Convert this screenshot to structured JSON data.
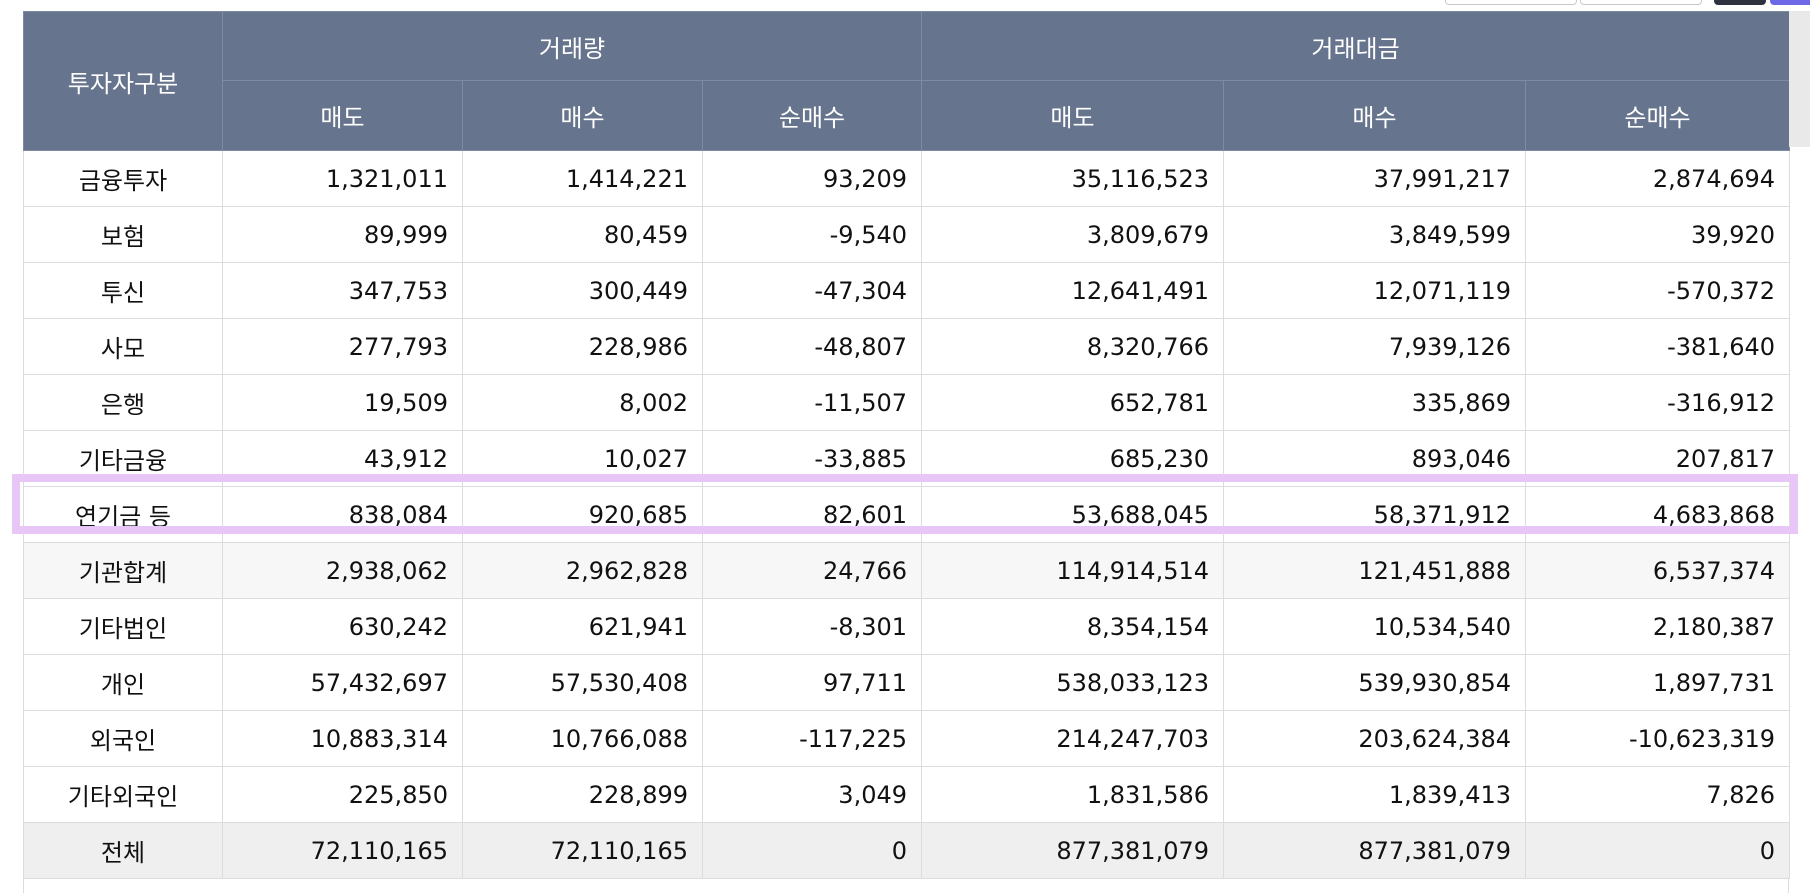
{
  "header": {
    "investor_type": "투자자구분",
    "volume_group": "거래량",
    "value_group": "거래대금",
    "sell": "매도",
    "buy": "매수",
    "net_buy": "순매수"
  },
  "rows": [
    {
      "label": "금융투자",
      "v_sell": "1,321,011",
      "v_buy": "1,414,221",
      "v_net": "93,209",
      "a_sell": "35,116,523",
      "a_buy": "37,991,217",
      "a_net": "2,874,694"
    },
    {
      "label": "보험",
      "v_sell": "89,999",
      "v_buy": "80,459",
      "v_net": "-9,540",
      "a_sell": "3,809,679",
      "a_buy": "3,849,599",
      "a_net": "39,920"
    },
    {
      "label": "투신",
      "v_sell": "347,753",
      "v_buy": "300,449",
      "v_net": "-47,304",
      "a_sell": "12,641,491",
      "a_buy": "12,071,119",
      "a_net": "-570,372"
    },
    {
      "label": "사모",
      "v_sell": "277,793",
      "v_buy": "228,986",
      "v_net": "-48,807",
      "a_sell": "8,320,766",
      "a_buy": "7,939,126",
      "a_net": "-381,640"
    },
    {
      "label": "은행",
      "v_sell": "19,509",
      "v_buy": "8,002",
      "v_net": "-11,507",
      "a_sell": "652,781",
      "a_buy": "335,869",
      "a_net": "-316,912"
    },
    {
      "label": "기타금융",
      "v_sell": "43,912",
      "v_buy": "10,027",
      "v_net": "-33,885",
      "a_sell": "685,230",
      "a_buy": "893,046",
      "a_net": "207,817"
    },
    {
      "label": "연기금 등",
      "v_sell": "838,084",
      "v_buy": "920,685",
      "v_net": "82,601",
      "a_sell": "53,688,045",
      "a_buy": "58,371,912",
      "a_net": "4,683,868"
    },
    {
      "label": "기관합계",
      "v_sell": "2,938,062",
      "v_buy": "2,962,828",
      "v_net": "24,766",
      "a_sell": "114,914,514",
      "a_buy": "121,451,888",
      "a_net": "6,537,374"
    },
    {
      "label": "기타법인",
      "v_sell": "630,242",
      "v_buy": "621,941",
      "v_net": "-8,301",
      "a_sell": "8,354,154",
      "a_buy": "10,534,540",
      "a_net": "2,180,387"
    },
    {
      "label": "개인",
      "v_sell": "57,432,697",
      "v_buy": "57,530,408",
      "v_net": "97,711",
      "a_sell": "538,033,123",
      "a_buy": "539,930,854",
      "a_net": "1,897,731"
    },
    {
      "label": "외국인",
      "v_sell": "10,883,314",
      "v_buy": "10,766,088",
      "v_net": "-117,225",
      "a_sell": "214,247,703",
      "a_buy": "203,624,384",
      "a_net": "-10,623,319"
    },
    {
      "label": "기타외국인",
      "v_sell": "225,850",
      "v_buy": "228,899",
      "v_net": "3,049",
      "a_sell": "1,831,586",
      "a_buy": "1,839,413",
      "a_net": "7,826"
    },
    {
      "label": "전체",
      "v_sell": "72,110,165",
      "v_buy": "72,110,165",
      "v_net": "0",
      "a_sell": "877,381,079",
      "a_buy": "877,381,079",
      "a_net": "0"
    }
  ],
  "highlighted_row": "연기금 등",
  "colors": {
    "header_bg": "#67748e",
    "header_text": "#ffffff",
    "highlight_border": "#e8c7f6",
    "total_row_bg": "#efefef"
  }
}
